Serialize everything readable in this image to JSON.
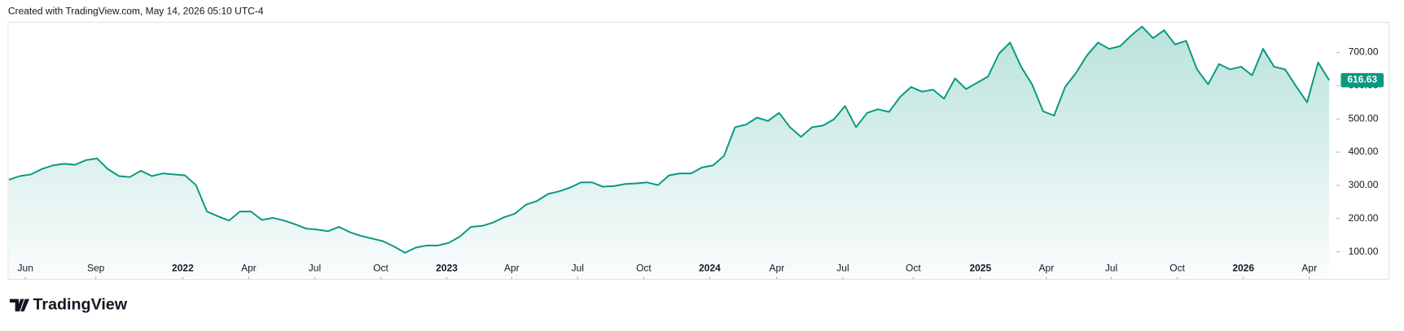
{
  "chart_data": {
    "type": "area",
    "caption": "Created with TradingView.com, May 14, 2026 05:10 UTC-4",
    "color": "#089981",
    "values": [
      317,
      328,
      333,
      349,
      360,
      365,
      362,
      376,
      381,
      349,
      328,
      325,
      344,
      328,
      336,
      333,
      330,
      301,
      221,
      207,
      194,
      221,
      221,
      196,
      202,
      194,
      183,
      170,
      167,
      162,
      175,
      159,
      148,
      140,
      132,
      116,
      97,
      113,
      119,
      119,
      127,
      146,
      175,
      178,
      188,
      204,
      215,
      242,
      253,
      274,
      282,
      293,
      309,
      309,
      296,
      298,
      304,
      306,
      309,
      301,
      330,
      336,
      336,
      354,
      360,
      389,
      475,
      483,
      504,
      494,
      518,
      475,
      446,
      475,
      480,
      499,
      539,
      475,
      518,
      529,
      521,
      566,
      596,
      582,
      588,
      561,
      622,
      590,
      609,
      628,
      697,
      730,
      657,
      604,
      523,
      510,
      596,
      639,
      692,
      730,
      711,
      719,
      751,
      778,
      743,
      767,
      724,
      735,
      649,
      604,
      665,
      649,
      657,
      631,
      711,
      657,
      649,
      598,
      550,
      670,
      616.63
    ],
    "xlim": [
      0,
      120.5
    ],
    "xticks": [
      {
        "value": 1.5,
        "label": "Jun"
      },
      {
        "value": 7.9,
        "label": "Sep"
      },
      {
        "value": 15.8,
        "label": "2022"
      },
      {
        "value": 21.8,
        "label": "Apr"
      },
      {
        "value": 27.8,
        "label": "Jul"
      },
      {
        "value": 33.8,
        "label": "Oct"
      },
      {
        "value": 39.8,
        "label": "2023"
      },
      {
        "value": 45.7,
        "label": "Apr"
      },
      {
        "value": 51.7,
        "label": "Jul"
      },
      {
        "value": 57.7,
        "label": "Oct"
      },
      {
        "value": 63.7,
        "label": "2024"
      },
      {
        "value": 69.8,
        "label": "Apr"
      },
      {
        "value": 75.8,
        "label": "Jul"
      },
      {
        "value": 82.2,
        "label": "Oct"
      },
      {
        "value": 88.3,
        "label": "2025"
      },
      {
        "value": 94.3,
        "label": "Apr"
      },
      {
        "value": 100.2,
        "label": "Jul"
      },
      {
        "value": 106.2,
        "label": "Oct"
      },
      {
        "value": 112.2,
        "label": "2026"
      },
      {
        "value": 118.2,
        "label": "Apr"
      }
    ],
    "ylim": [
      17,
      791
    ],
    "yticks": [
      {
        "value": 100,
        "label": "100.00"
      },
      {
        "value": 200,
        "label": "200.00"
      },
      {
        "value": 300,
        "label": "300.00"
      },
      {
        "value": 400,
        "label": "400.00"
      },
      {
        "value": 500,
        "label": "500.00"
      },
      {
        "value": 600,
        "label": "600.00"
      },
      {
        "value": 700,
        "label": "700.00"
      }
    ]
  },
  "brand": "TradingView"
}
